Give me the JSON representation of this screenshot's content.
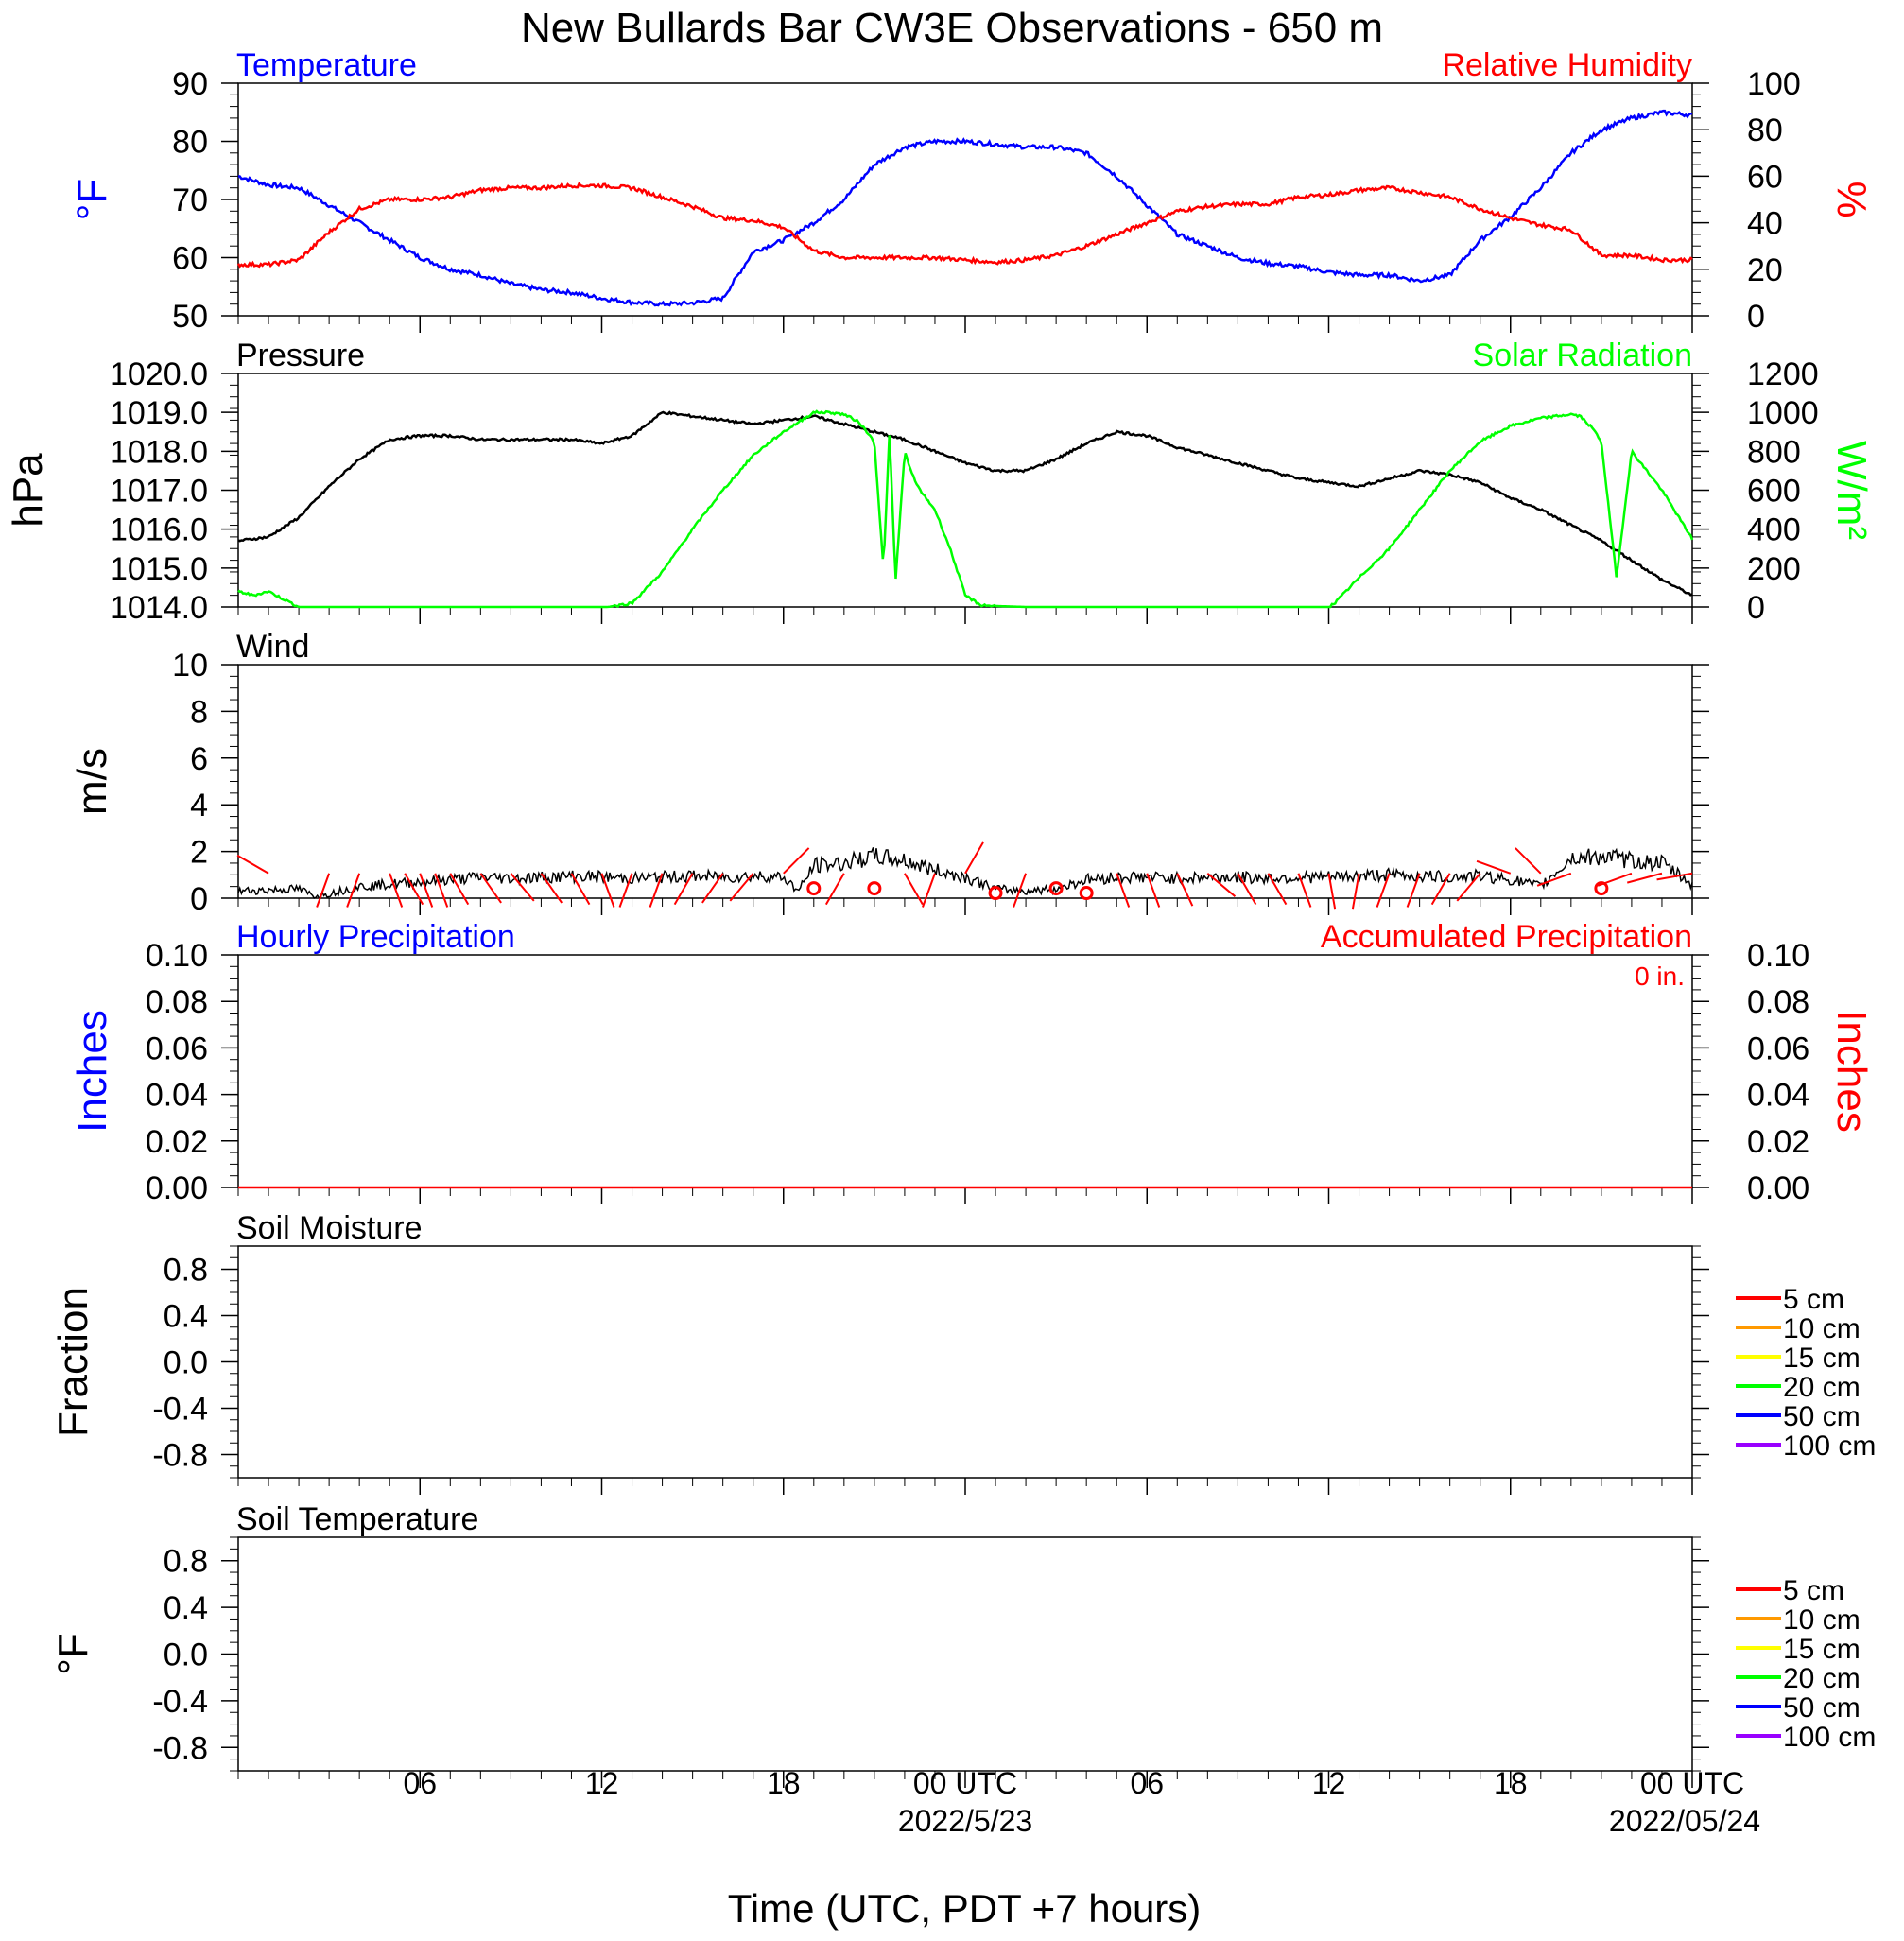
{
  "title": "New Bullards Bar CW3E Observations - 650 m",
  "xlabel": "Time (UTC, PDT +7 hours)",
  "x_ticks": [
    "06",
    "12",
    "18",
    "00 UTC",
    "06",
    "12",
    "18",
    "00 UTC"
  ],
  "x_dates": [
    "2022/5/23",
    "2022/05/24"
  ],
  "colors": {
    "temperature": "#0000ff",
    "rh": "#ff0000",
    "pressure": "#000000",
    "solar": "#00ff00",
    "wind": "#000000",
    "barbs": "#ff0000",
    "precip_hourly": "#0000ff",
    "precip_accum": "#ff0000"
  },
  "chart_data": [
    {
      "type": "line",
      "panel": "temp_rh",
      "left_title": "Temperature",
      "right_title": "Relative Humidity",
      "ylabel_left": "°F",
      "ylabel_right": "%",
      "ylim_left": [
        50,
        90
      ],
      "ylim_right": [
        0,
        100
      ],
      "yticks_left": [
        "50",
        "60",
        "70",
        "80",
        "90"
      ],
      "yticks_right": [
        "0",
        "20",
        "40",
        "60",
        "80",
        "100"
      ],
      "series": [
        {
          "key": "temperature",
          "axis": "left",
          "x": [
            0,
            1,
            2,
            3,
            4,
            5,
            6,
            7,
            8,
            9,
            10,
            11,
            12,
            13,
            14,
            15,
            16,
            17,
            18,
            19,
            20,
            21,
            22,
            23,
            24,
            25,
            26,
            27,
            28,
            29,
            30,
            31,
            32,
            33,
            34,
            35,
            36,
            37,
            38,
            39,
            40,
            41,
            42,
            43,
            44,
            45,
            46,
            47,
            48
          ],
          "values": [
            74,
            72.5,
            72,
            69,
            66,
            63,
            60,
            58,
            57,
            55.5,
            54.5,
            54,
            53,
            52.3,
            52,
            52.2,
            53,
            61,
            63,
            66,
            70,
            76,
            79,
            80,
            80,
            79.5,
            79,
            79,
            78,
            74,
            69,
            64,
            62,
            60,
            59,
            58.5,
            57.5,
            57,
            57,
            56,
            57,
            63,
            67,
            72,
            78,
            82,
            84,
            85,
            84.5
          ]
        },
        {
          "key": "rh",
          "axis": "right",
          "x": [
            0,
            1,
            2,
            3,
            4,
            5,
            6,
            7,
            8,
            9,
            10,
            11,
            12,
            13,
            14,
            15,
            16,
            17,
            18,
            19,
            20,
            21,
            22,
            23,
            24,
            25,
            26,
            27,
            28,
            29,
            30,
            31,
            32,
            33,
            34,
            35,
            36,
            37,
            38,
            39,
            40,
            41,
            42,
            43,
            44,
            45,
            46,
            47,
            48
          ],
          "values": [
            22,
            22,
            24,
            36,
            46,
            50,
            50,
            51,
            54,
            55,
            55,
            56,
            56,
            55,
            51,
            47,
            42,
            41,
            38,
            28,
            25,
            25,
            25,
            25,
            24,
            23,
            24,
            26,
            30,
            35,
            40,
            45,
            47,
            48,
            48,
            51,
            52,
            54,
            55,
            53,
            51,
            46,
            42,
            39,
            37,
            26,
            26,
            24,
            24
          ]
        }
      ]
    },
    {
      "type": "line",
      "panel": "pressure_solar",
      "left_title": "Pressure",
      "right_title": "Solar Radiation",
      "ylabel_left": "hPa",
      "ylabel_right": "W/m2",
      "ylim_left": [
        1014,
        1020
      ],
      "ylim_right": [
        0,
        1200
      ],
      "yticks_left": [
        "1014.0",
        "1015.0",
        "1016.0",
        "1017.0",
        "1018.0",
        "1019.0",
        "1020.0"
      ],
      "yticks_right": [
        "0",
        "200",
        "400",
        "600",
        "800",
        "1000",
        "1200"
      ],
      "series": [
        {
          "key": "pressure",
          "axis": "left",
          "x": [
            0,
            1,
            2,
            3,
            4,
            5,
            6,
            7,
            8,
            9,
            10,
            11,
            12,
            13,
            14,
            15,
            16,
            17,
            18,
            19,
            20,
            21,
            22,
            23,
            24,
            25,
            26,
            27,
            28,
            29,
            30,
            31,
            32,
            33,
            34,
            35,
            36,
            37,
            38,
            39,
            40,
            41,
            42,
            43,
            44,
            45,
            46,
            47,
            48
          ],
          "values": [
            1015.7,
            1015.8,
            1016.3,
            1017.1,
            1017.8,
            1018.3,
            1018.4,
            1018.4,
            1018.3,
            1018.3,
            1018.3,
            1018.3,
            1018.2,
            1018.4,
            1019.0,
            1018.9,
            1018.8,
            1018.7,
            1018.8,
            1018.9,
            1018.7,
            1018.5,
            1018.3,
            1018.0,
            1017.7,
            1017.5,
            1017.5,
            1017.8,
            1018.2,
            1018.5,
            1018.4,
            1018.1,
            1017.9,
            1017.7,
            1017.5,
            1017.3,
            1017.2,
            1017.1,
            1017.3,
            1017.5,
            1017.4,
            1017.2,
            1016.8,
            1016.5,
            1016.1,
            1015.7,
            1015.2,
            1014.7,
            1014.3
          ]
        },
        {
          "key": "solar",
          "axis": "right",
          "x": [
            0,
            0.5,
            1,
            1.5,
            2,
            3,
            4,
            6,
            8,
            10,
            12,
            12.2,
            13,
            14,
            15,
            16,
            17,
            18,
            18.5,
            19,
            19.5,
            20,
            20.5,
            21,
            21.3,
            21.5,
            21.7,
            22,
            22.2,
            22.5,
            23,
            23.5,
            24,
            24.5,
            25,
            26,
            30,
            35,
            36,
            36.2,
            37,
            38,
            39,
            40,
            41,
            42,
            43,
            44,
            44.3,
            44.5,
            44.7,
            45,
            45.5,
            46,
            46.5,
            47,
            48
          ],
          "values": [
            80,
            60,
            80,
            40,
            0,
            0,
            0,
            0,
            0,
            0,
            0,
            0,
            20,
            180,
            400,
            600,
            780,
            900,
            950,
            1000,
            1000,
            990,
            950,
            850,
            200,
            900,
            130,
            800,
            700,
            600,
            500,
            300,
            60,
            10,
            5,
            0,
            0,
            0,
            0,
            20,
            150,
            300,
            500,
            700,
            850,
            930,
            970,
            990,
            980,
            950,
            920,
            850,
            150,
            800,
            700,
            600,
            350
          ]
        }
      ]
    },
    {
      "type": "line",
      "panel": "wind",
      "left_title": "Wind",
      "ylabel_left": "m/s",
      "ylim_left": [
        0,
        10
      ],
      "yticks_left": [
        "0",
        "2",
        "4",
        "6",
        "8",
        "10"
      ],
      "series": [
        {
          "key": "wind",
          "axis": "left",
          "x": [
            0,
            1,
            2,
            2.5,
            3,
            4,
            5,
            6,
            7,
            8,
            9,
            10,
            11,
            12,
            13,
            14,
            15,
            16,
            17,
            18,
            18.5,
            19,
            20,
            21,
            22,
            23,
            24,
            25,
            26,
            27,
            28,
            29,
            30,
            31,
            32,
            33,
            34,
            35,
            36,
            37,
            38,
            39,
            40,
            41,
            42,
            43,
            44,
            45,
            46,
            47,
            48
          ],
          "values": [
            0.3,
            0.35,
            0.4,
            0.1,
            0.2,
            0.5,
            0.6,
            0.7,
            0.8,
            0.9,
            0.85,
            0.9,
            0.95,
            0.9,
            0.85,
            0.9,
            0.95,
            0.9,
            0.95,
            0.9,
            0.3,
            1.4,
            1.5,
            1.8,
            1.6,
            1.2,
            0.9,
            0.4,
            0.3,
            0.4,
            0.8,
            0.9,
            0.9,
            0.85,
            0.9,
            0.9,
            0.85,
            0.9,
            0.9,
            0.95,
            1.0,
            0.95,
            0.9,
            0.95,
            0.8,
            0.5,
            1.7,
            1.8,
            1.6,
            1.5,
            0.6
          ]
        },
        {
          "key": "barbs",
          "axis": "left",
          "type": "barb",
          "x": [
            1,
            3,
            4,
            5,
            5.5,
            6,
            6.5,
            7,
            8,
            9,
            10,
            11,
            12,
            13,
            14,
            15,
            16,
            17,
            18,
            19,
            20,
            21,
            22,
            23,
            24,
            25,
            26,
            27,
            28,
            29,
            30,
            31,
            32,
            33,
            34,
            35,
            36,
            37,
            38,
            39,
            40,
            41,
            42,
            43,
            44,
            45,
            46,
            47,
            48
          ],
          "values": [
            0.6,
            0.5,
            0.4,
            1.0,
            1.2,
            1.2,
            1.3,
            1.2,
            1.1,
            1.0,
            1.0,
            1.0,
            1.0,
            1.1,
            1.2,
            1.3,
            1.2,
            1.2,
            1.6,
            0.3,
            0.6,
            0.3,
            1.0,
            0.5,
            0.6,
            0.1,
            0.4,
            0.3,
            0.1,
            1.0,
            1.2,
            1.1,
            1.2,
            1.0,
            1.2,
            1.3,
            1.3,
            1.3,
            1.2,
            1.3,
            1.2,
            1.2,
            1.3,
            1.6,
            1.4,
            0.3,
            0.8,
            1.0,
            1.3
          ],
          "direction_deg": [
            300,
            200,
            200,
            160,
            150,
            160,
            160,
            150,
            145,
            140,
            145,
            150,
            160,
            200,
            200,
            210,
            215,
            220,
            45,
            200,
            210,
            200,
            150,
            200,
            30,
            200,
            200,
            200,
            200,
            160,
            160,
            155,
            130,
            150,
            150,
            160,
            170,
            190,
            200,
            200,
            210,
            220,
            290,
            315,
            250,
            200,
            250,
            255,
            260
          ]
        }
      ]
    },
    {
      "type": "line",
      "panel": "precip",
      "left_title": "Hourly Precipitation",
      "right_title": "Accumulated Precipitation",
      "annotation": "0 in.",
      "ylabel_left": "Inches",
      "ylabel_right": "Inches",
      "ylim_left": [
        0,
        0.1
      ],
      "ylim_right": [
        0,
        0.1
      ],
      "yticks_left": [
        "0.00",
        "0.02",
        "0.04",
        "0.06",
        "0.08",
        "0.10"
      ],
      "yticks_right": [
        "0.00",
        "0.02",
        "0.04",
        "0.06",
        "0.08",
        "0.10"
      ],
      "series": [
        {
          "key": "precip_accum",
          "axis": "right",
          "x": [
            0,
            48
          ],
          "values": [
            0,
            0
          ]
        }
      ]
    },
    {
      "type": "line",
      "panel": "soil_moisture",
      "left_title": "Soil Moisture",
      "ylabel_left": "Fraction",
      "ylim_left": [
        -1,
        1
      ],
      "yticks_left": [
        "-0.8",
        "-0.4",
        "0.0",
        "0.4",
        "0.8"
      ],
      "legend": [
        {
          "name": "5 cm",
          "color": "#ff0000"
        },
        {
          "name": "10 cm",
          "color": "#ff9900"
        },
        {
          "name": "15 cm",
          "color": "#ffff00"
        },
        {
          "name": "20 cm",
          "color": "#00ff00"
        },
        {
          "name": "50 cm",
          "color": "#0000ff"
        },
        {
          "name": "100 cm",
          "color": "#9900ff"
        }
      ],
      "series": []
    },
    {
      "type": "line",
      "panel": "soil_temp",
      "left_title": "Soil Temperature",
      "ylabel_left": "°F",
      "ylim_left": [
        -1,
        1
      ],
      "yticks_left": [
        "-0.8",
        "-0.4",
        "0.0",
        "0.4",
        "0.8"
      ],
      "legend": [
        {
          "name": "5 cm",
          "color": "#ff0000"
        },
        {
          "name": "10 cm",
          "color": "#ff9900"
        },
        {
          "name": "15 cm",
          "color": "#ffff00"
        },
        {
          "name": "20 cm",
          "color": "#00ff00"
        },
        {
          "name": "50 cm",
          "color": "#0000ff"
        },
        {
          "name": "100 cm",
          "color": "#9900ff"
        }
      ],
      "series": []
    }
  ]
}
